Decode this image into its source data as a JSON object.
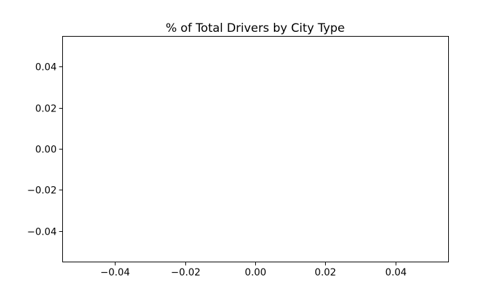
{
  "chart_data": {
    "type": "pie",
    "title": "% of Total Drivers by City Type",
    "values": [],
    "categories": [],
    "xlim": [
      -0.055,
      0.055
    ],
    "ylim": [
      -0.055,
      0.055
    ],
    "xticks": [
      -0.04,
      -0.02,
      0.0,
      0.02,
      0.04
    ],
    "yticks": [
      0.04,
      0.02,
      0.0,
      -0.02,
      -0.04
    ],
    "xtick_labels": [
      "−0.04",
      "−0.02",
      "0.00",
      "0.02",
      "0.04"
    ],
    "ytick_labels": [
      "0.04",
      "0.02",
      "0.00",
      "−0.02",
      "−0.04"
    ],
    "grid": false
  }
}
